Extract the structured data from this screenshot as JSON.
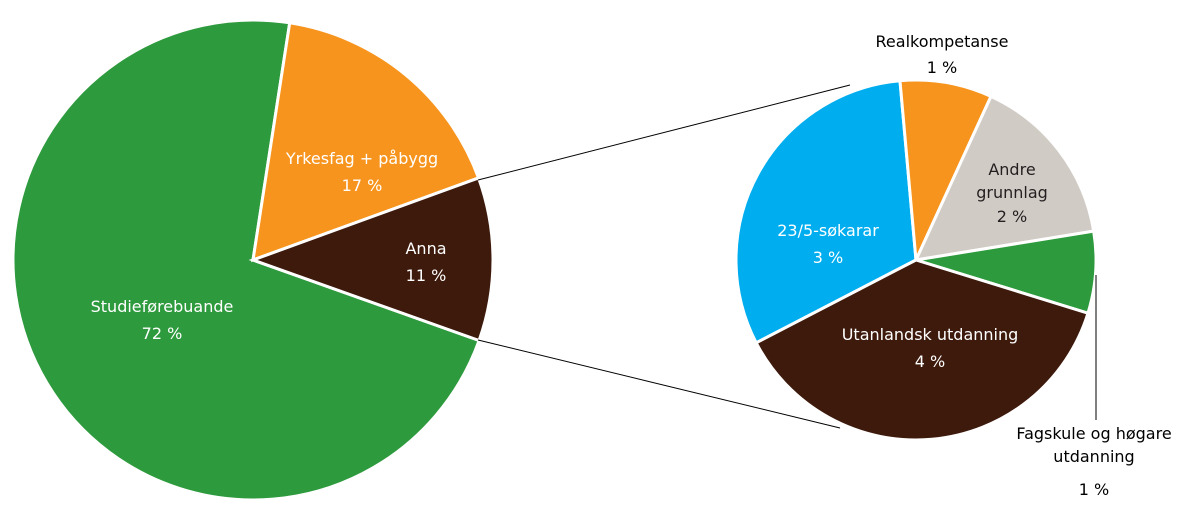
{
  "chart_data": [
    {
      "type": "pie",
      "categories": [
        "Studieførebuande",
        "Yrkesfag + påbygg",
        "Anna"
      ],
      "values": [
        72,
        17,
        11
      ],
      "value_labels": [
        "72 %",
        "17 %",
        "11 %"
      ],
      "colors": [
        "#2e9a3e",
        "#f7941d",
        "#3d1a0c"
      ]
    },
    {
      "type": "pie",
      "categories": [
        "23/5-søkarar",
        "Realkompetanse",
        "Andre grunnlag",
        "Fagskule og høgare utdanning",
        "Utanlandsk utdanning"
      ],
      "values": [
        3.4,
        0.9,
        1.7,
        0.8,
        4.1
      ],
      "value_labels": [
        "3 %",
        "1 %",
        "2 %",
        "1 %",
        "4 %"
      ],
      "colors": [
        "#00aeef",
        "#f7941d",
        "#d1cbc5",
        "#2e9a3e",
        "#3d1a0c"
      ]
    }
  ]
}
